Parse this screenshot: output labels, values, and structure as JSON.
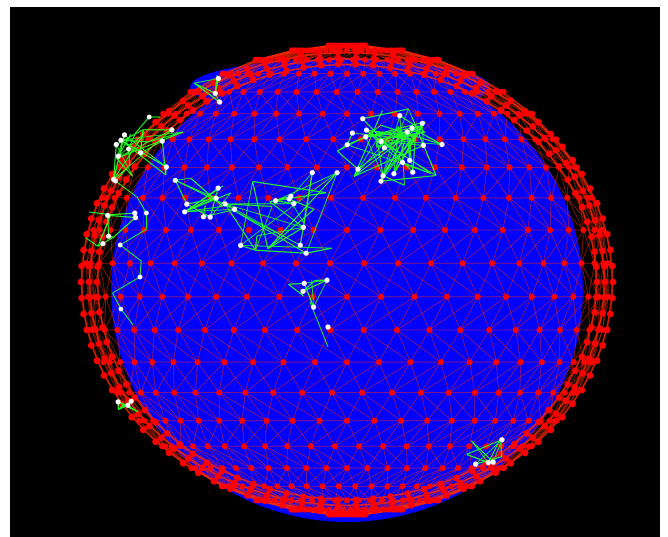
{
  "scene": {
    "background_color": "#000000",
    "globe_color": "#0000ff",
    "grid_edge_color": "#ff2a00",
    "node_color": "#ff0000",
    "route_color": "#22ff22",
    "route_node_color": "#ffffff"
  }
}
